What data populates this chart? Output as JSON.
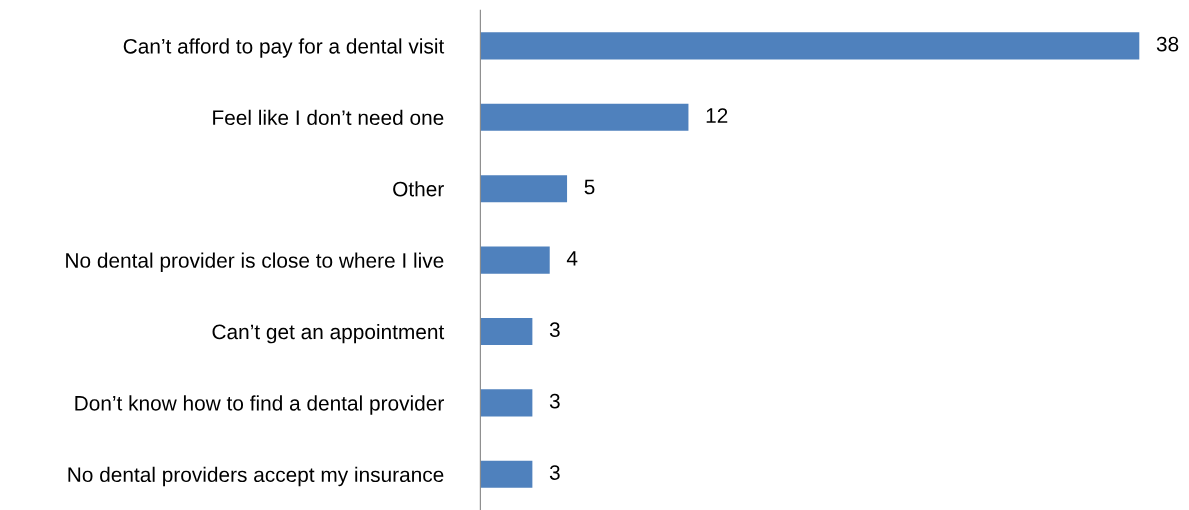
{
  "chart_data": {
    "type": "bar",
    "orientation": "horizontal",
    "categories": [
      "Can’t afford to pay for a dental visit",
      "Feel like I don’t need one",
      "Other",
      "No dental provider is close to where I live",
      "Can’t get an appointment",
      "Don’t know how to find a dental provider",
      "No dental providers accept my insurance"
    ],
    "values": [
      38,
      12,
      5,
      4,
      3,
      3,
      3
    ],
    "color": "#4f81bd",
    "data_labels": true,
    "grid": false,
    "legend": false,
    "tick_labels": "y"
  }
}
